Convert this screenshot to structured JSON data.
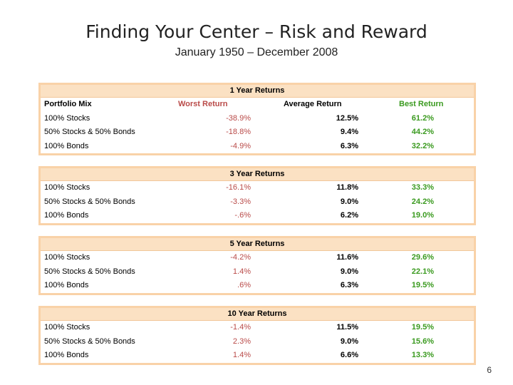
{
  "title": "Finding Your Center – Risk and Reward",
  "subtitle": "January 1950 – December 2008",
  "page_number": "6",
  "colors": {
    "worst": "#b94a48",
    "best": "#3a9a1f",
    "header_fill": "#fbe1c3",
    "border": "#f9d2a8"
  },
  "column_headers": {
    "mix": "Portfolio Mix",
    "worst": "Worst Return",
    "average": "Average Return",
    "best": "Best Return"
  },
  "tables": [
    {
      "heading": "1 Year Returns",
      "rows": [
        {
          "mix": "100% Stocks",
          "worst": "-38.9%",
          "average": "12.5%",
          "best": "61.2%"
        },
        {
          "mix": "50% Stocks & 50% Bonds",
          "worst": "-18.8%",
          "average": "9.4%",
          "best": "44.2%"
        },
        {
          "mix": "100% Bonds",
          "worst": "-4.9%",
          "average": "6.3%",
          "best": "32.2%"
        }
      ]
    },
    {
      "heading": "3 Year Returns",
      "rows": [
        {
          "mix": "100% Stocks",
          "worst": "-16.1%",
          "average": "11.8%",
          "best": "33.3%"
        },
        {
          "mix": "50% Stocks & 50% Bonds",
          "worst": "-3.3%",
          "average": "9.0%",
          "best": "24.2%"
        },
        {
          "mix": "100% Bonds",
          "worst": "-.6%",
          "average": "6.2%",
          "best": "19.0%"
        }
      ]
    },
    {
      "heading": "5 Year Returns",
      "rows": [
        {
          "mix": "100% Stocks",
          "worst": "-4.2%",
          "average": "11.6%",
          "best": "29.6%"
        },
        {
          "mix": "50% Stocks & 50% Bonds",
          "worst": "1.4%",
          "average": "9.0%",
          "best": "22.1%"
        },
        {
          "mix": "100% Bonds",
          "worst": ".6%",
          "average": "6.3%",
          "best": "19.5%"
        }
      ]
    },
    {
      "heading": "10 Year Returns",
      "rows": [
        {
          "mix": "100% Stocks",
          "worst": "-1.4%",
          "average": "11.5%",
          "best": "19.5%"
        },
        {
          "mix": "50% Stocks & 50% Bonds",
          "worst": "2.3%",
          "average": "9.0%",
          "best": "15.6%"
        },
        {
          "mix": "100% Bonds",
          "worst": "1.4%",
          "average": "6.6%",
          "best": "13.3%"
        }
      ]
    }
  ]
}
